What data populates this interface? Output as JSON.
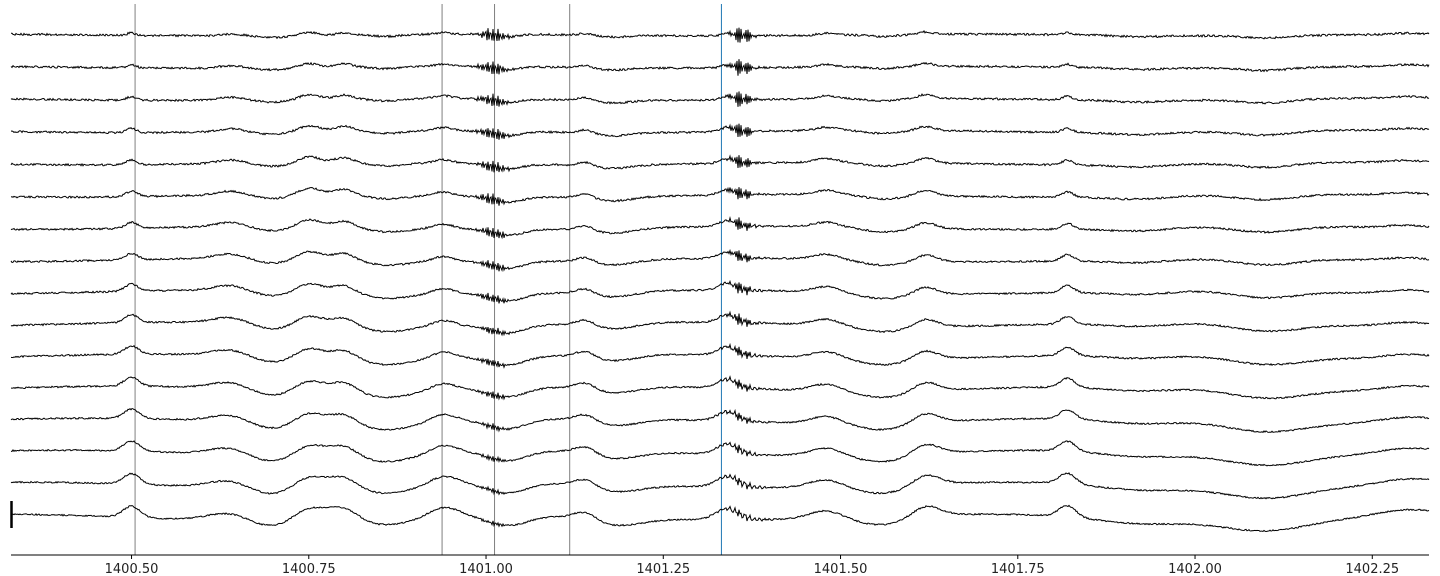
{
  "chart_data": {
    "type": "line",
    "title": "",
    "xlabel": "",
    "ylabel": "",
    "xlim": [
      1400.33,
      1402.33
    ],
    "x_ticks": [
      {
        "value": 1400.5,
        "label": "1400.50"
      },
      {
        "value": 1400.75,
        "label": "1400.75"
      },
      {
        "value": 1401.0,
        "label": "1401.00"
      },
      {
        "value": 1401.25,
        "label": "1401.25"
      },
      {
        "value": 1401.5,
        "label": "1401.50"
      },
      {
        "value": 1401.75,
        "label": "1401.75"
      },
      {
        "value": 1402.0,
        "label": "1402.00"
      },
      {
        "value": 1402.25,
        "label": "1402.25"
      }
    ],
    "vertical_markers": [
      {
        "x": 1400.505,
        "color": "#808080"
      },
      {
        "x": 1400.938,
        "color": "#808080"
      },
      {
        "x": 1401.012,
        "color": "#808080"
      },
      {
        "x": 1401.118,
        "color": "#808080"
      },
      {
        "x": 1401.332,
        "color": "#1f77b4"
      }
    ],
    "trace_count": 16,
    "trace_color": "#000000",
    "grid": false,
    "legend": "none",
    "y_axis_visible": false,
    "scale_bar": true
  }
}
